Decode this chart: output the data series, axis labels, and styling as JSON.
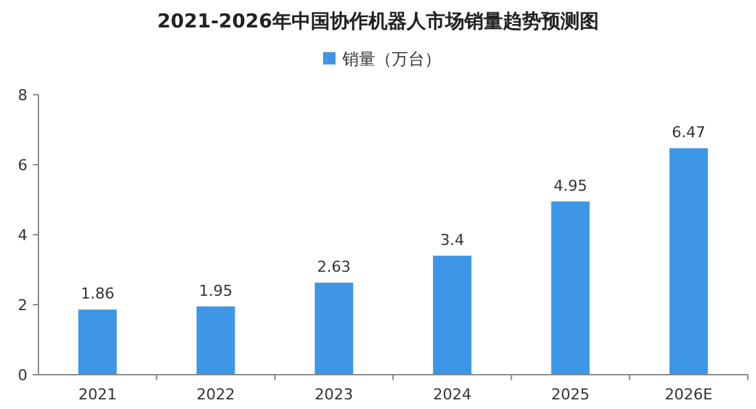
{
  "chart_data": {
    "type": "bar",
    "title": "2021-2026年中国协作机器人市场销量趋势预测图",
    "categories": [
      "2021",
      "2022",
      "2023",
      "2024",
      "2025",
      "2026E"
    ],
    "series": [
      {
        "name": "销量（万台）",
        "color": "#3d96e6",
        "values": [
          1.86,
          1.95,
          2.63,
          3.4,
          4.95,
          6.47
        ]
      }
    ],
    "ylim": [
      0,
      8
    ],
    "yticks": [
      0,
      2,
      4,
      6,
      8
    ],
    "data_labels": true,
    "legend": "top",
    "grid": false
  }
}
